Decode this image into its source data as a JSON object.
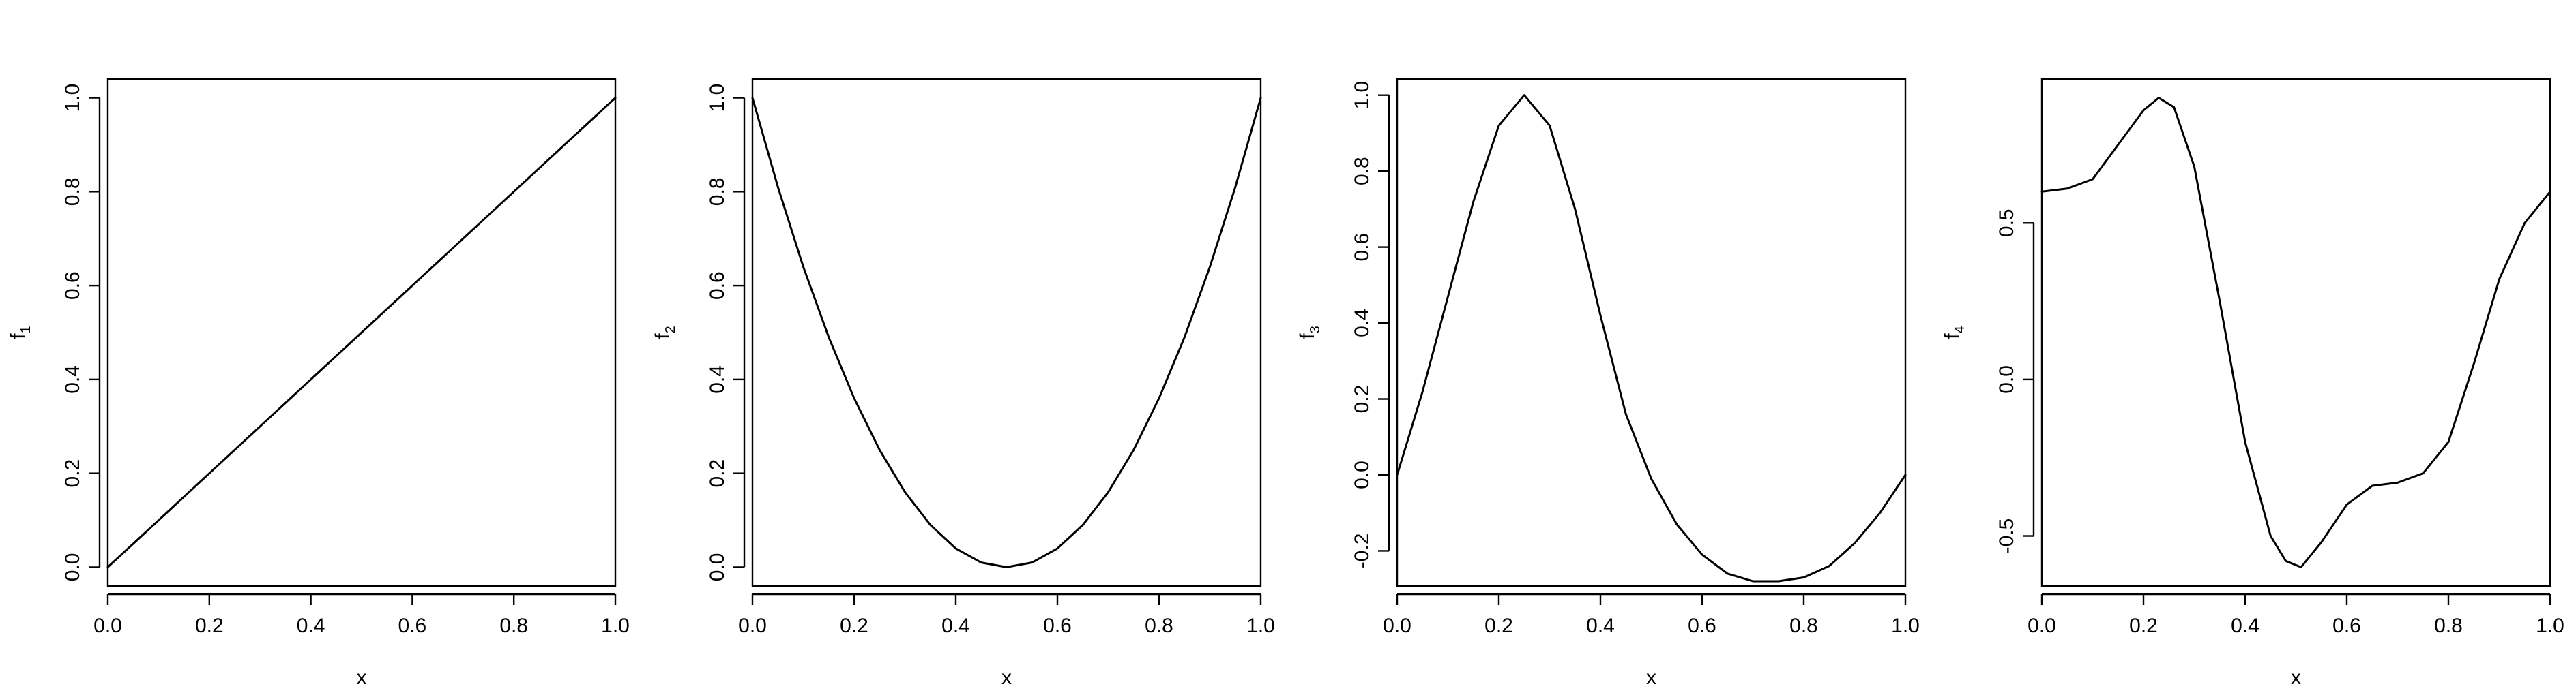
{
  "chart_data": [
    {
      "type": "line",
      "xlabel": "x",
      "ylabel_base": "f",
      "ylabel_sub": "1",
      "xlim": [
        0,
        1
      ],
      "ylim": [
        -0.04,
        1.04
      ],
      "xticks": [
        0.0,
        0.2,
        0.4,
        0.6,
        0.8,
        1.0
      ],
      "xtick_labels": [
        "0.0",
        "0.2",
        "0.4",
        "0.6",
        "0.8",
        "1.0"
      ],
      "yticks": [
        0.0,
        0.2,
        0.4,
        0.6,
        0.8,
        1.0
      ],
      "ytick_labels": [
        "0.0",
        "0.2",
        "0.4",
        "0.6",
        "0.8",
        "1.0"
      ],
      "grid": false,
      "series": [
        {
          "x": [
            0.0,
            0.1,
            0.2,
            0.3,
            0.4,
            0.5,
            0.6,
            0.7,
            0.8,
            0.9,
            1.0
          ],
          "y": [
            0.0,
            0.1,
            0.2,
            0.3,
            0.4,
            0.5,
            0.6,
            0.7,
            0.8,
            0.9,
            1.0
          ]
        }
      ]
    },
    {
      "type": "line",
      "xlabel": "x",
      "ylabel_base": "f",
      "ylabel_sub": "2",
      "xlim": [
        0,
        1
      ],
      "ylim": [
        -0.04,
        1.04
      ],
      "xticks": [
        0.0,
        0.2,
        0.4,
        0.6,
        0.8,
        1.0
      ],
      "xtick_labels": [
        "0.0",
        "0.2",
        "0.4",
        "0.6",
        "0.8",
        "1.0"
      ],
      "yticks": [
        0.0,
        0.2,
        0.4,
        0.6,
        0.8,
        1.0
      ],
      "ytick_labels": [
        "0.0",
        "0.2",
        "0.4",
        "0.6",
        "0.8",
        "1.0"
      ],
      "grid": false,
      "series": [
        {
          "x": [
            0.0,
            0.05,
            0.1,
            0.15,
            0.2,
            0.25,
            0.3,
            0.35,
            0.4,
            0.45,
            0.5,
            0.55,
            0.6,
            0.65,
            0.7,
            0.75,
            0.8,
            0.85,
            0.9,
            0.95,
            1.0
          ],
          "y": [
            1.0,
            0.81,
            0.64,
            0.49,
            0.36,
            0.25,
            0.16,
            0.09,
            0.04,
            0.01,
            0.0,
            0.01,
            0.04,
            0.09,
            0.16,
            0.25,
            0.36,
            0.49,
            0.64,
            0.81,
            1.0
          ]
        }
      ]
    },
    {
      "type": "line",
      "xlabel": "x",
      "ylabel_base": "f",
      "ylabel_sub": "3",
      "xlim": [
        0,
        1
      ],
      "ylim": [
        -0.2925,
        1.0425
      ],
      "xticks": [
        0.0,
        0.2,
        0.4,
        0.6,
        0.8,
        1.0
      ],
      "xtick_labels": [
        "0.0",
        "0.2",
        "0.4",
        "0.6",
        "0.8",
        "1.0"
      ],
      "yticks": [
        -0.2,
        0.0,
        0.2,
        0.4,
        0.6,
        0.8,
        1.0
      ],
      "ytick_labels": [
        "-0.2",
        "0.0",
        "0.2",
        "0.4",
        "0.6",
        "0.8",
        "1.0"
      ],
      "grid": false,
      "series": [
        {
          "x": [
            0.0,
            0.05,
            0.1,
            0.15,
            0.2,
            0.25,
            0.3,
            0.35,
            0.4,
            0.45,
            0.5,
            0.55,
            0.6,
            0.65,
            0.7,
            0.75,
            0.8,
            0.85,
            0.9,
            0.95,
            1.0
          ],
          "y": [
            0.0,
            0.22,
            0.47,
            0.72,
            0.92,
            1.0,
            0.92,
            0.7,
            0.42,
            0.16,
            -0.01,
            -0.13,
            -0.21,
            -0.26,
            -0.28,
            -0.28,
            -0.27,
            -0.24,
            -0.18,
            -0.1,
            0.0
          ]
        }
      ]
    },
    {
      "type": "line",
      "xlabel": "x",
      "ylabel_base": "f",
      "ylabel_sub": "4",
      "xlim": [
        0,
        1
      ],
      "ylim": [
        -0.66,
        0.96
      ],
      "xticks": [
        0.0,
        0.2,
        0.4,
        0.6,
        0.8,
        1.0
      ],
      "xtick_labels": [
        "0.0",
        "0.2",
        "0.4",
        "0.6",
        "0.8",
        "1.0"
      ],
      "yticks": [
        -0.5,
        0.0,
        0.5
      ],
      "ytick_labels": [
        "-0.5",
        "0.0",
        "0.5"
      ],
      "grid": false,
      "series": [
        {
          "x": [
            0.0,
            0.05,
            0.1,
            0.15,
            0.2,
            0.23,
            0.26,
            0.3,
            0.35,
            0.4,
            0.45,
            0.48,
            0.51,
            0.55,
            0.6,
            0.65,
            0.7,
            0.75,
            0.8,
            0.85,
            0.9,
            0.95,
            1.0
          ],
          "y": [
            0.6,
            0.61,
            0.64,
            0.75,
            0.86,
            0.9,
            0.87,
            0.68,
            0.25,
            -0.2,
            -0.5,
            -0.58,
            -0.6,
            -0.52,
            -0.4,
            -0.34,
            -0.33,
            -0.3,
            -0.2,
            0.05,
            0.32,
            0.5,
            0.6
          ]
        }
      ]
    }
  ]
}
